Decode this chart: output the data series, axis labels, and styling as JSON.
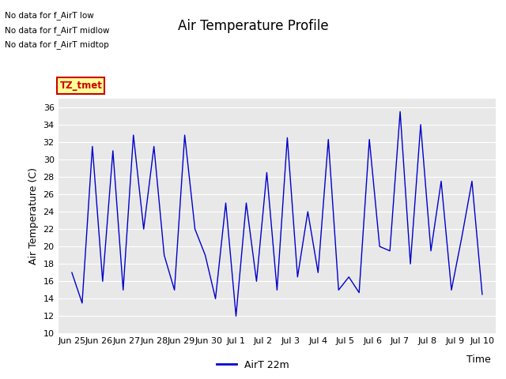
{
  "title": "Air Temperature Profile",
  "xlabel": "Time",
  "ylabel": "Air Temperature (C)",
  "ylim": [
    10,
    37
  ],
  "yticks": [
    10,
    12,
    14,
    16,
    18,
    20,
    22,
    24,
    26,
    28,
    30,
    32,
    34,
    36
  ],
  "bg_color": "#e8e8e8",
  "line_color": "#0000cc",
  "legend_label": "AirT 22m",
  "no_data_texts": [
    "No data for f_AirT low",
    "No data for f_AirT midlow",
    "No data for f_AirT midtop"
  ],
  "legend_box_color": "#ffff99",
  "legend_box_border": "#cc0000",
  "legend_box_text": "TZ_tmet",
  "x_tick_labels": [
    "Jun 25",
    "Jun 26",
    "Jun 27",
    "Jun 28",
    "Jun 29",
    "Jun 30",
    "Jul 1",
    "Jul 2",
    "Jul 3",
    "Jul 4",
    "Jul 5",
    "Jul 6",
    "Jul 7",
    "Jul 8",
    "Jul 9",
    "Jul 10"
  ],
  "y_data": [
    17.0,
    13.5,
    31.5,
    16.0,
    31.0,
    15.0,
    32.8,
    22.0,
    31.5,
    19.0,
    15.0,
    32.8,
    22.0,
    19.0,
    14.0,
    25.0,
    12.0,
    25.0,
    16.0,
    28.5,
    15.0,
    32.5,
    16.5,
    24.0,
    17.0,
    32.3,
    15.0,
    16.5,
    14.7,
    32.3,
    20.0,
    19.5,
    35.5,
    18.0,
    34.0,
    19.5,
    27.5,
    15.0,
    21.0,
    27.5,
    14.5
  ]
}
